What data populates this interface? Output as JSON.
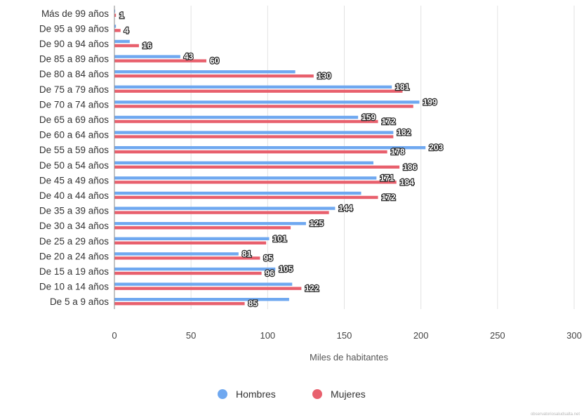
{
  "chart_data": {
    "type": "bar",
    "orientation": "horizontal",
    "categories": [
      "Más de 99 años",
      "De 95 a 99 años",
      "De 90 a 94 años",
      "De 85 a 89 años",
      "De 80 a 84 años",
      "De 75 a 79 años",
      "De 70 a 74 años",
      "De 65 a 69 años",
      "De 60 a 64 años",
      "De 55 a 59 años",
      "De 50 a 54 años",
      "De 45 a 49 años",
      "De 40 a 44 años",
      "De 35 a 39 años",
      "De 30 a 34 años",
      "De 25 a 29 años",
      "De 20 a 24 años",
      "De 15 a 19 años",
      "De 10 a 14 años",
      "De 5 a 9 años"
    ],
    "series": [
      {
        "name": "Hombres",
        "color": "#6fa8f0",
        "values": [
          0.5,
          1,
          10,
          43,
          118,
          181,
          199,
          159,
          182,
          203,
          169,
          171,
          161,
          144,
          125,
          101,
          81,
          105,
          116,
          114
        ]
      },
      {
        "name": "Mujeres",
        "color": "#e8606d",
        "values": [
          1,
          4,
          16,
          60,
          130,
          188,
          195,
          172,
          182,
          178,
          186,
          184,
          172,
          140,
          115,
          99,
          95,
          96,
          122,
          85
        ]
      }
    ],
    "data_labels": [
      {
        "category_index": 0,
        "series_index": 1,
        "text": "1"
      },
      {
        "category_index": 1,
        "series_index": 1,
        "text": "4"
      },
      {
        "category_index": 2,
        "series_index": 1,
        "text": "16"
      },
      {
        "category_index": 3,
        "series_index": 0,
        "text": "43"
      },
      {
        "category_index": 3,
        "series_index": 1,
        "text": "60"
      },
      {
        "category_index": 4,
        "series_index": 1,
        "text": "130"
      },
      {
        "category_index": 5,
        "series_index": 0,
        "text": "181"
      },
      {
        "category_index": 6,
        "series_index": 0,
        "text": "199"
      },
      {
        "category_index": 7,
        "series_index": 0,
        "text": "159"
      },
      {
        "category_index": 7,
        "series_index": 1,
        "text": "172"
      },
      {
        "category_index": 8,
        "series_index": 0,
        "text": "182"
      },
      {
        "category_index": 9,
        "series_index": 0,
        "text": "203"
      },
      {
        "category_index": 9,
        "series_index": 1,
        "text": "178"
      },
      {
        "category_index": 10,
        "series_index": 1,
        "text": "186"
      },
      {
        "category_index": 11,
        "series_index": 0,
        "text": "171"
      },
      {
        "category_index": 11,
        "series_index": 1,
        "text": "184"
      },
      {
        "category_index": 12,
        "series_index": 1,
        "text": "172"
      },
      {
        "category_index": 13,
        "series_index": 0,
        "text": "144"
      },
      {
        "category_index": 14,
        "series_index": 0,
        "text": "125"
      },
      {
        "category_index": 15,
        "series_index": 0,
        "text": "101"
      },
      {
        "category_index": 16,
        "series_index": 0,
        "text": "81"
      },
      {
        "category_index": 16,
        "series_index": 1,
        "text": "95"
      },
      {
        "category_index": 17,
        "series_index": 0,
        "text": "105"
      },
      {
        "category_index": 17,
        "series_index": 1,
        "text": "96"
      },
      {
        "category_index": 18,
        "series_index": 1,
        "text": "122"
      },
      {
        "category_index": 19,
        "series_index": 1,
        "text": "85"
      }
    ],
    "xlabel": "Miles de habitantes",
    "ylabel": "",
    "xlim": [
      0,
      300
    ],
    "xticks": [
      0,
      50,
      100,
      150,
      200,
      250,
      300
    ],
    "grid": true,
    "legend_position": "bottom"
  },
  "watermark": "observatoriosaludsalta.net"
}
